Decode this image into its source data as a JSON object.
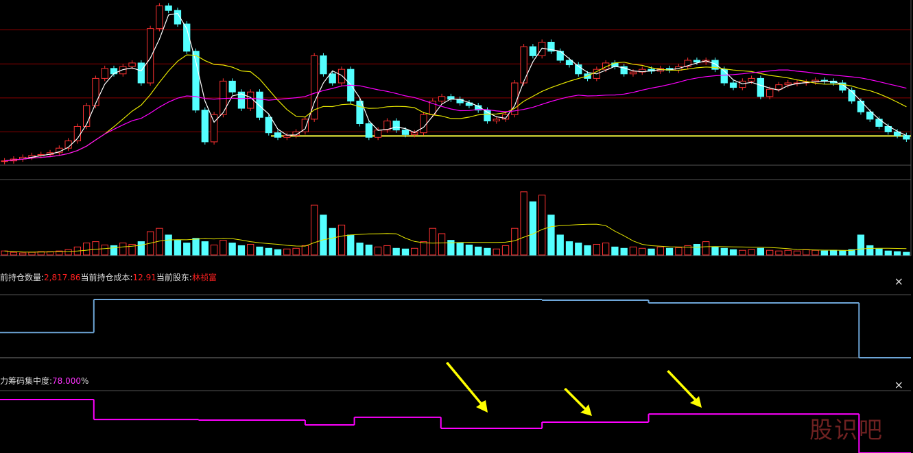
{
  "chart_data": [
    {
      "type": "candlestick",
      "values": [
        7.4,
        7.6,
        7.8,
        8.0,
        8.1,
        8.3,
        8.8,
        9.6,
        11.2,
        13.5,
        16.5,
        17.6,
        17,
        17.8,
        18.2,
        16,
        22,
        24.5,
        24,
        22.5,
        19.5,
        13,
        9.5,
        12.5,
        16.2,
        15,
        13.2,
        15,
        12.2,
        10.5,
        10,
        10.2,
        10.6,
        12,
        19,
        17,
        16,
        17.5,
        14,
        11.5,
        10,
        10.8,
        11.8,
        10.8,
        10.3,
        10.5,
        12.5,
        14,
        14.5,
        14.2,
        13.8,
        13.5,
        13,
        11.8,
        12,
        12.5,
        16,
        20,
        19,
        20.5,
        19.5,
        18.5,
        18,
        17,
        16.5,
        17.5,
        18.2,
        17.8,
        17,
        17.2,
        17.5,
        17.3,
        17.6,
        17.4,
        17.8,
        18.5,
        18.3,
        18.5,
        17.5,
        16,
        15.5,
        16.2,
        16.5,
        14.5,
        15.3,
        15.8,
        16,
        16,
        16.1,
        16.3,
        16.2,
        16,
        15.2,
        14,
        12.8,
        12,
        11.2,
        10.6,
        10.2,
        9.8
      ],
      "ylim": [
        7,
        25
      ],
      "levels": [
        10.6,
        14.35,
        18.1,
        21.85
      ],
      "support": 10.15,
      "up_color": "#ff3232",
      "down_color": "#54ffff",
      "level_color": "#8b0000",
      "support_color": "#ffff40"
    },
    {
      "type": "bar",
      "values": [
        6,
        4,
        3,
        4,
        5,
        5,
        6,
        8,
        12,
        18,
        20,
        15,
        14,
        18,
        16,
        20,
        35,
        40,
        30,
        22,
        18,
        25,
        20,
        15,
        22,
        18,
        14,
        16,
        12,
        10,
        8,
        9,
        10,
        14,
        75,
        60,
        40,
        45,
        30,
        18,
        15,
        12,
        14,
        10,
        9,
        10,
        20,
        40,
        32,
        22,
        18,
        15,
        12,
        10,
        9,
        14,
        40,
        95,
        80,
        90,
        60,
        30,
        20,
        18,
        14,
        16,
        18,
        12,
        10,
        12,
        10,
        9,
        12,
        10,
        11,
        14,
        16,
        20,
        12,
        10,
        8,
        7,
        8,
        10,
        7,
        6,
        7,
        6,
        8,
        7,
        6,
        7,
        6,
        8,
        30,
        14,
        9,
        6,
        5,
        4
      ],
      "ylim": [
        0,
        100
      ]
    },
    {
      "type": "step",
      "header": [
        {
          "label": "当前持仓数量:",
          "value": "2,817.86"
        },
        {
          "label": "当前持仓成本:",
          "value": "12.91"
        },
        {
          "label": "当前股东:",
          "value": "林祯富"
        }
      ],
      "close": "×",
      "x": [
        0,
        10.3,
        59.5,
        71.2,
        94.3
      ],
      "values": [
        1200,
        2770,
        2740,
        2610,
        0
      ],
      "xlim": [
        0,
        100
      ],
      "ylim": [
        0,
        3000
      ],
      "color": "#6ea6d8"
    },
    {
      "type": "step",
      "header": [
        {
          "label": "主力筹码集中度:",
          "value": "78.000",
          "unit": "%"
        }
      ],
      "close": "×",
      "x": [
        0,
        10.3,
        21.8,
        33.5,
        38.9,
        48.4,
        59.5,
        71.2,
        94.3
      ],
      "values": [
        94.3,
        81.5,
        81.1,
        78,
        82.9,
        75.8,
        79.8,
        85,
        60
      ],
      "xlim": [
        0,
        100
      ],
      "ylim": [
        60,
        100
      ],
      "color": "#ff00ff"
    }
  ],
  "watermark": "股识吧"
}
